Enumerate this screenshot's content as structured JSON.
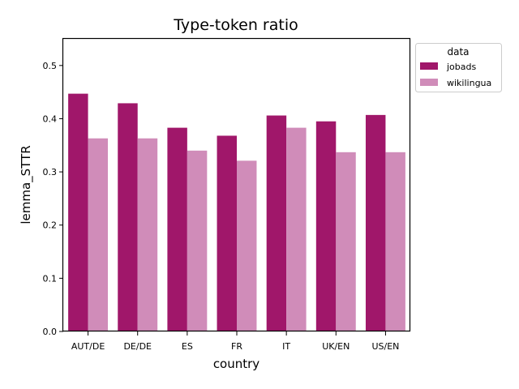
{
  "chart_data": {
    "type": "bar",
    "title": "Type-token ratio",
    "xlabel": "country",
    "ylabel": "lemma_STTR",
    "categories": [
      "AUT/DE",
      "DE/DE",
      "ES",
      "FR",
      "IT",
      "UK/EN",
      "US/EN"
    ],
    "ylim": [
      0,
      0.55
    ],
    "yticks": [
      "0.0",
      "0.1",
      "0.2",
      "0.3",
      "0.4",
      "0.5"
    ],
    "grid": false,
    "legend": {
      "title": "data",
      "placement": "outside-top-right"
    },
    "series": [
      {
        "name": "jobads",
        "color": "#a0176a",
        "values": [
          0.447,
          0.429,
          0.383,
          0.368,
          0.406,
          0.395,
          0.407
        ]
      },
      {
        "name": "wikilingua",
        "color": "#d08cb9",
        "values": [
          0.363,
          0.363,
          0.34,
          0.321,
          0.383,
          0.337,
          0.337
        ]
      }
    ]
  }
}
